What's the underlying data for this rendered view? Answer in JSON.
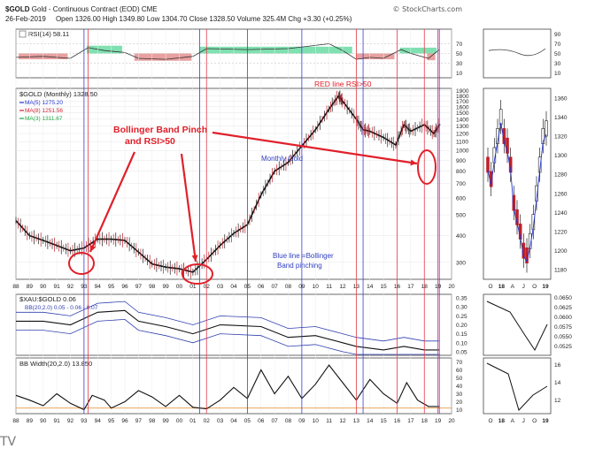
{
  "header": {
    "symbol": "$GOLD",
    "name": "Gold - Continuous Contract (EOD)",
    "exchange": "CME",
    "date": "26-Feb-2019",
    "ohlc": "Open 1326.00  High 1349.80  Low 1304.70  Close 1328.50  Volume 325.4M  Chg +3.30 (+0.25%)",
    "credit": "© StockCharts.com"
  },
  "panels": {
    "rsi_label": "RSI(14) 58.11",
    "rsi_ticks": [
      "70",
      "50",
      "30",
      "10"
    ],
    "rsi_side_ticks": [
      "90",
      "70",
      "50",
      "30",
      "10"
    ],
    "price_legend": {
      "title": "$GOLD (Monthly) 1328.50",
      "ma5": "MA(5) 1275.20",
      "ma8": "MA(8) 1251.56",
      "ma3": "MA(3) 1311.67"
    },
    "price_ticks": [
      "1900",
      "1800",
      "1700",
      "1600",
      "1500",
      "1400",
      "1300",
      "1200",
      "1100",
      "1000",
      "900",
      "800",
      "700",
      "600",
      "500",
      "400",
      "300"
    ],
    "side_price_ticks": [
      "1360",
      "1340",
      "1320",
      "1300",
      "1280",
      "1260",
      "1240",
      "1220",
      "1200",
      "1180"
    ],
    "ratio_label": "$XAU:$GOLD 0.06",
    "bb_label": "BB(20,2.0) 0.05 - 0.06 - 0.07",
    "ratio_ticks": [
      "0.35",
      "0.30",
      "0.25",
      "0.20",
      "0.15",
      "0.10",
      "0.05"
    ],
    "side_ratio_ticks": [
      "0.0650",
      "0.0625",
      "0.0600",
      "0.0575",
      "0.0550",
      "0.0525"
    ],
    "bbw_label": "BB Width(20,2.0) 13.850",
    "bbw_ticks": [
      "70",
      "60",
      "50",
      "40",
      "30",
      "20",
      "10"
    ],
    "side_bbw_ticks": [
      "16",
      "14",
      "12"
    ],
    "year_labels": [
      "88",
      "89",
      "90",
      "91",
      "92",
      "93",
      "94",
      "95",
      "96",
      "97",
      "98",
      "99",
      "00",
      "01",
      "02",
      "03",
      "04",
      "05",
      "06",
      "07",
      "08",
      "09",
      "10",
      "11",
      "12",
      "13",
      "14",
      "15",
      "16",
      "17",
      "18",
      "19",
      "20"
    ],
    "side_month_labels": [
      "O",
      "18",
      "A",
      "J",
      "O",
      "19"
    ]
  },
  "annotations": {
    "red_line_note": "RED line RSI>50",
    "pinch_title_1": "Bollinger Band Pinch",
    "pinch_title_2": "and RSI>50",
    "monthly_gold": "Monthly Gold",
    "blue_note_1": "Blue line =Bollinger",
    "blue_note_2": "Band pinching"
  },
  "watermark": "TV",
  "colors": {
    "annotation_red": "#e0202a",
    "annotation_blue": "#2f3fc0",
    "rsi_green_fill": "#7fe0b0",
    "rsi_red_fill": "#e8a0a0",
    "vline_blue": "#3a3adf",
    "vline_red": "#e23a4a",
    "ma5": "#2233cc",
    "ma8": "#cc2233",
    "ma3": "#22aa44"
  },
  "chart_data": {
    "type": "line",
    "title": "$GOLD (Monthly)",
    "x_range": [
      1988,
      2020
    ],
    "y_range": [
      200,
      1950
    ],
    "y_scale": "log",
    "series": [
      {
        "name": "$GOLD (Monthly)",
        "x": [
          1988,
          1989,
          1990,
          1991,
          1992,
          1993,
          1994,
          1995,
          1996,
          1997,
          1998,
          1999,
          2000,
          2001,
          2002,
          2003,
          2004,
          2005,
          2006,
          2007,
          2008,
          2009,
          2010,
          2011,
          2011.7,
          2012,
          2013,
          2013.5,
          2014,
          2015,
          2015.9,
          2016.5,
          2017,
          2018,
          2018.7,
          2019.15
        ],
        "values": [
          470,
          400,
          380,
          360,
          340,
          350,
          385,
          385,
          380,
          335,
          295,
          285,
          280,
          270,
          310,
          360,
          410,
          450,
          620,
          800,
          880,
          1050,
          1250,
          1560,
          1800,
          1700,
          1400,
          1250,
          1230,
          1150,
          1060,
          1320,
          1230,
          1320,
          1200,
          1328
        ]
      }
    ],
    "vertical_markers": {
      "red": [
        1993.3,
        2002.0,
        2013.0,
        2016.0,
        2018.0,
        2019.0
      ],
      "blue": [
        1993.0,
        2001.5,
        2005.0,
        2009.0,
        2013.5,
        2019.1
      ]
    }
  }
}
